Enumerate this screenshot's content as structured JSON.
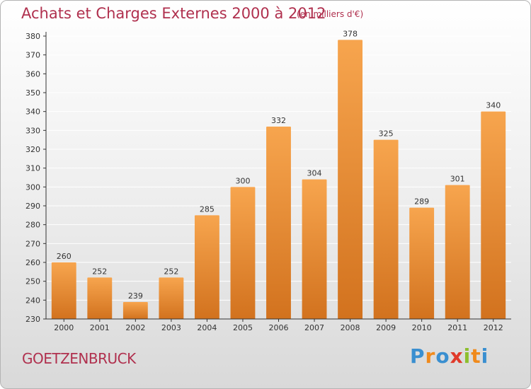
{
  "page": {
    "commune": "GOETZENBRUCK",
    "logo_text": "Proxiti"
  },
  "colors": {
    "title": "#b0304e",
    "bar_light": "#f7a54e",
    "bar_dark": "#d2721e",
    "axis": "#333333",
    "grid": "#ffffff"
  },
  "chart_data": {
    "type": "bar",
    "title": "Achats et Charges Externes 2000 à 2012",
    "subtitle": "(en milliers d'€)",
    "xlabel": "",
    "ylabel": "",
    "categories": [
      "2000",
      "2001",
      "2002",
      "2003",
      "2004",
      "2005",
      "2006",
      "2007",
      "2008",
      "2009",
      "2010",
      "2011",
      "2012"
    ],
    "values": [
      260,
      252,
      239,
      252,
      285,
      300,
      332,
      304,
      378,
      325,
      289,
      301,
      340
    ],
    "ylim": [
      230,
      380
    ],
    "yticks": [
      230,
      240,
      250,
      260,
      270,
      280,
      290,
      300,
      310,
      320,
      330,
      340,
      350,
      360,
      370,
      380
    ],
    "grid": true,
    "legend": "none"
  }
}
